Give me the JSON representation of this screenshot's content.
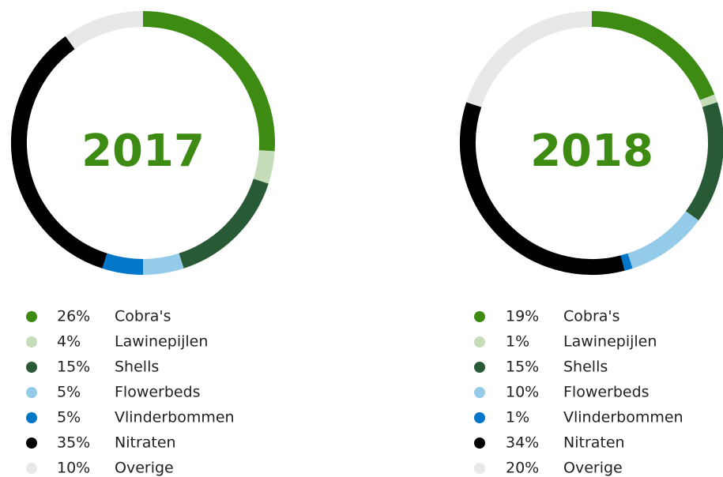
{
  "chart_data": [
    {
      "type": "pie",
      "title": "2017",
      "categories": [
        "Cobra's",
        "Lawinepijlen",
        "Shells",
        "Flowerbeds",
        "Vlinderbommen",
        "Nitraten",
        "Overige"
      ],
      "values": [
        26,
        4,
        15,
        5,
        5,
        35,
        10
      ],
      "value_labels": [
        "26%",
        "4%",
        "15%",
        "5%",
        "5%",
        "35%",
        "10%"
      ],
      "colors": [
        "#3d8b12",
        "#c4dcb8",
        "#285a36",
        "#93cbe8",
        "#0077c8",
        "#000000",
        "#e8e8e8"
      ]
    },
    {
      "type": "pie",
      "title": "2018",
      "categories": [
        "Cobra's",
        "Lawinepijlen",
        "Shells",
        "Flowerbeds",
        "Vlinderbommen",
        "Nitraten",
        "Overige"
      ],
      "values": [
        19,
        1,
        15,
        10,
        1,
        34,
        20
      ],
      "value_labels": [
        "19%",
        "1%",
        "15%",
        "10%",
        "1%",
        "34%",
        "20%"
      ],
      "colors": [
        "#3d8b12",
        "#c4dcb8",
        "#285a36",
        "#93cbe8",
        "#0077c8",
        "#000000",
        "#e8e8e8"
      ]
    }
  ]
}
